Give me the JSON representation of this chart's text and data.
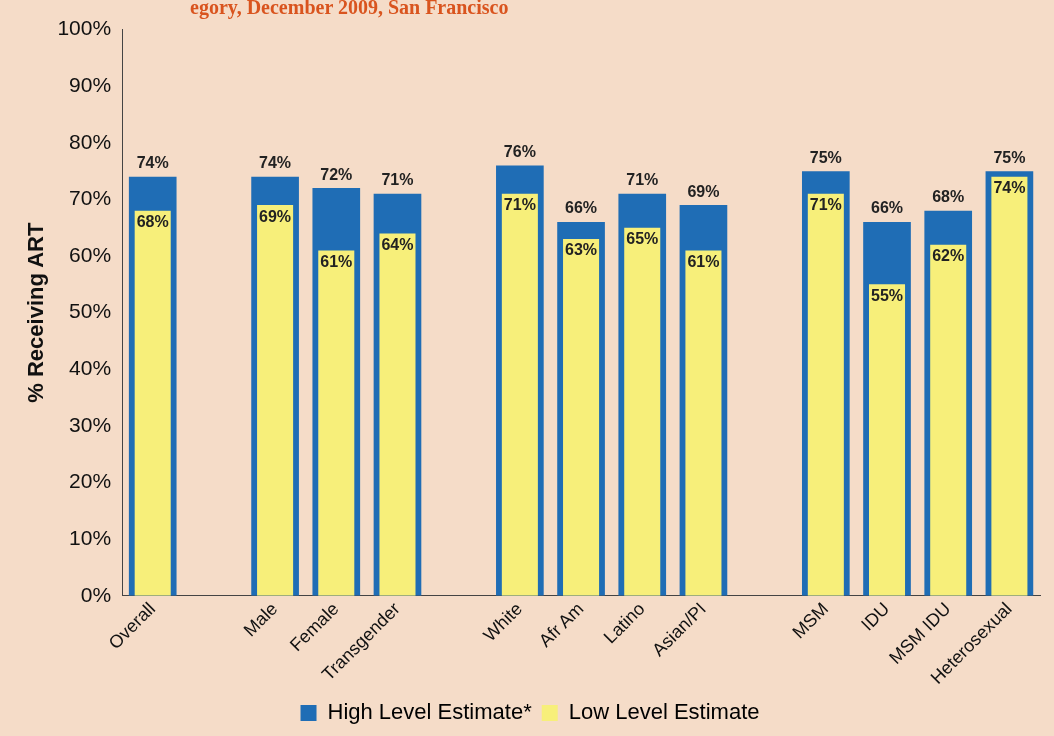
{
  "chart_data": {
    "type": "bar",
    "title": "egory, December 2009, San Francisco",
    "ylabel": "% Receiving ART",
    "categories": [
      "Overall",
      null,
      "Male",
      "Female",
      "Transgender",
      null,
      "White",
      "Afr Am",
      "Latino",
      "Asian/PI",
      null,
      "MSM",
      "IDU",
      "MSM IDU",
      "Heterosexual"
    ],
    "series": [
      {
        "name": "High Level Estimate*",
        "color": "#1f6db5",
        "values": [
          74,
          null,
          74,
          72,
          71,
          null,
          76,
          66,
          71,
          69,
          null,
          75,
          66,
          68,
          75
        ],
        "value_labels": [
          "74%",
          null,
          "74%",
          "72%",
          "71%",
          null,
          "76%",
          "66%",
          "71%",
          "69%",
          null,
          "75%",
          "66%",
          "68%",
          "75%"
        ]
      },
      {
        "name": "Low Level Estimate",
        "color": "#f7ef7a",
        "values": [
          68,
          null,
          69,
          61,
          64,
          null,
          71,
          63,
          65,
          61,
          null,
          71,
          55,
          62,
          74
        ],
        "value_labels": [
          "68%",
          null,
          "69%",
          "61%",
          "64%",
          null,
          "71%",
          "63%",
          "65%",
          "61%",
          null,
          "71%",
          "55%",
          "62%",
          "74%"
        ]
      }
    ],
    "ylim": [
      0,
      100
    ],
    "yticks": [
      {
        "value": 0,
        "label": "0%"
      },
      {
        "value": 10,
        "label": "10%"
      },
      {
        "value": 20,
        "label": "20%"
      },
      {
        "value": 30,
        "label": "30%"
      },
      {
        "value": 40,
        "label": "40%"
      },
      {
        "value": 50,
        "label": "50%"
      },
      {
        "value": 60,
        "label": "60%"
      },
      {
        "value": 70,
        "label": "70%"
      },
      {
        "value": 80,
        "label": "80%"
      },
      {
        "value": 90,
        "label": "90%"
      },
      {
        "value": 100,
        "label": "100%"
      }
    ],
    "grid": false,
    "legend": "bottom"
  }
}
